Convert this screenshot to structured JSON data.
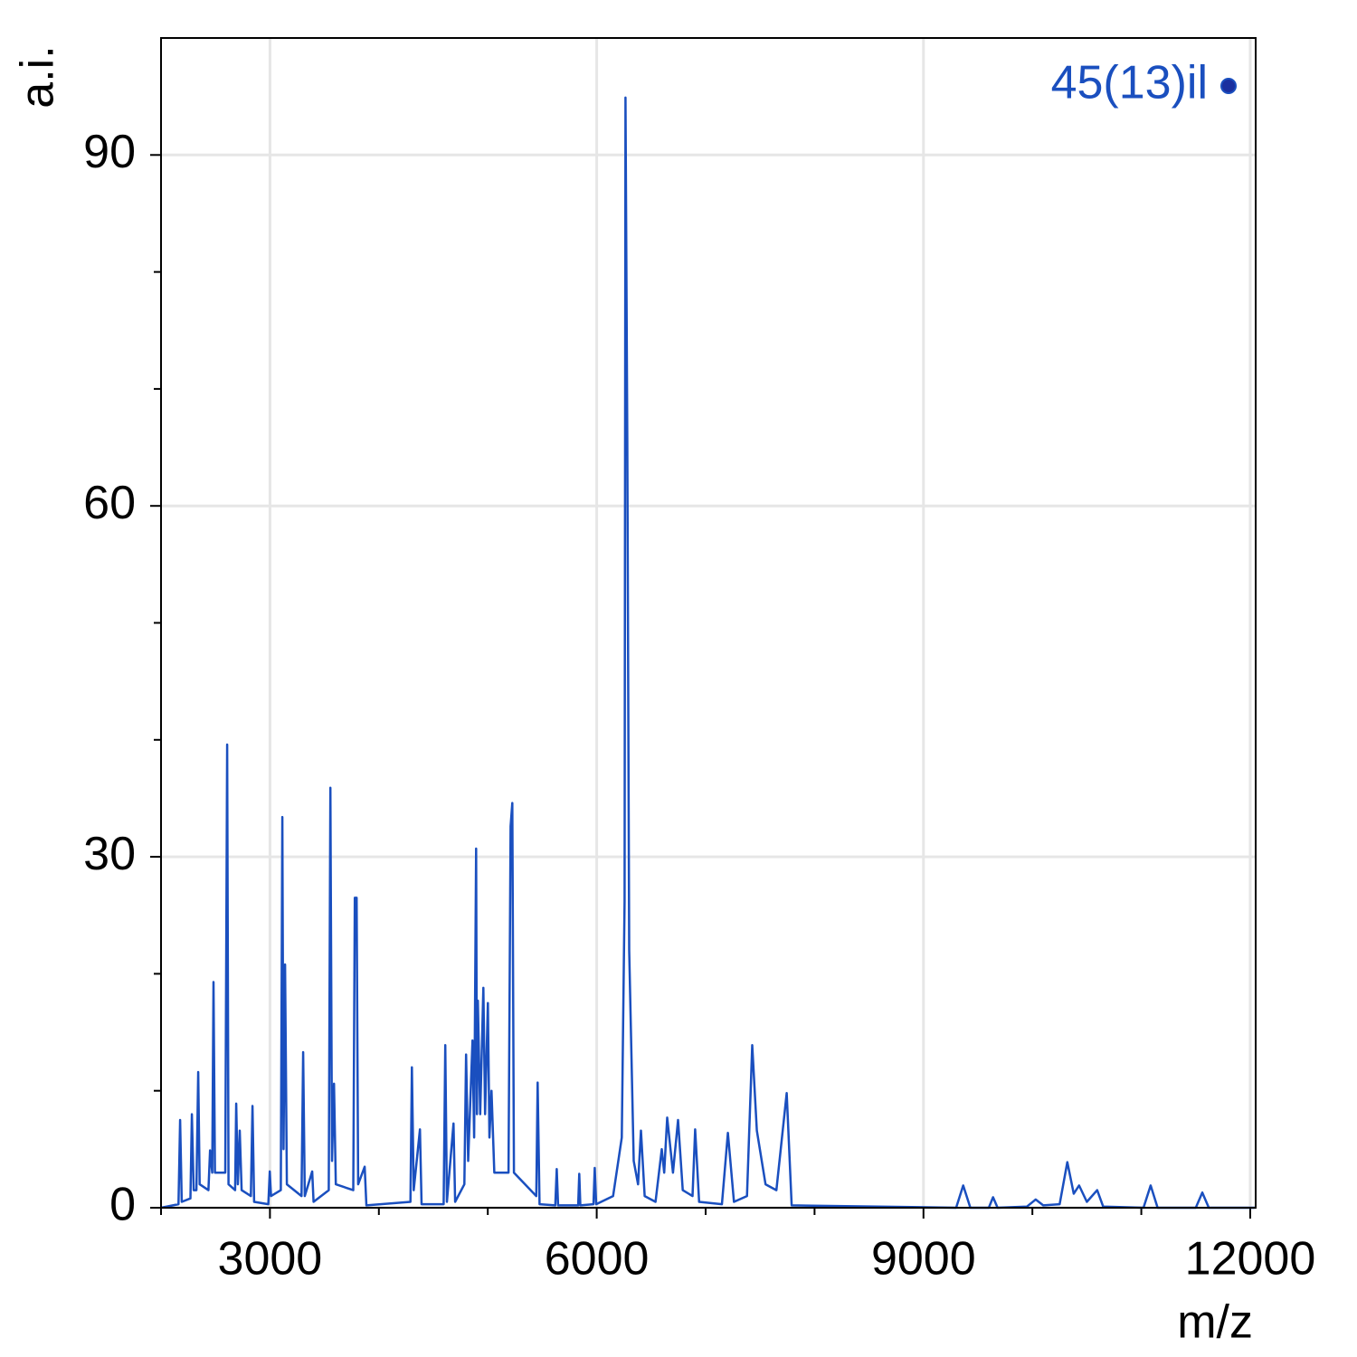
{
  "chart_data": {
    "type": "line",
    "xlabel": "m/z",
    "ylabel": "a.i.",
    "xlim": [
      2000,
      12050
    ],
    "ylim": [
      0,
      100
    ],
    "xticks": [
      3000,
      6000,
      9000,
      12000
    ],
    "xminorticks": [
      2000,
      4000,
      5000,
      7000,
      8000,
      10000,
      11000
    ],
    "yticks": [
      0,
      30,
      60,
      90
    ],
    "yminorticks": [
      10,
      20,
      40,
      50,
      70,
      80
    ],
    "grid": true,
    "legend": "upper right",
    "x": [
      2000,
      2160,
      2175,
      2190,
      2270,
      2283,
      2300,
      2325,
      2341,
      2355,
      2435,
      2450,
      2470,
      2482,
      2495,
      2590,
      2607,
      2620,
      2680,
      2690,
      2705,
      2723,
      2740,
      2825,
      2840,
      2855,
      2985,
      2998,
      3010,
      3100,
      3114,
      3125,
      3139,
      3155,
      3290,
      3305,
      3320,
      3388,
      3400,
      3540,
      3555,
      3570,
      3588,
      3605,
      3765,
      3779,
      3796,
      3810,
      3870,
      3885,
      4290,
      4303,
      4320,
      4377,
      4392,
      4595,
      4610,
      4625,
      4685,
      4700,
      4785,
      4801,
      4820,
      4860,
      4875,
      4893,
      4900,
      4909,
      4930,
      4959,
      4975,
      5001,
      5015,
      5034,
      5060,
      5190,
      5209,
      5225,
      5240,
      5445,
      5458,
      5475,
      5620,
      5633,
      5645,
      5830,
      5840,
      5850,
      5970,
      5982,
      5995,
      6150,
      6230,
      6256,
      6264,
      6281,
      6298,
      6340,
      6380,
      6406,
      6440,
      6540,
      6597,
      6620,
      6647,
      6700,
      6747,
      6790,
      6880,
      6904,
      6940,
      7150,
      7204,
      7260,
      7380,
      7428,
      7470,
      7550,
      7650,
      7744,
      7790,
      9300,
      9365,
      9430,
      9600,
      9639,
      9680,
      9950,
      10030,
      10100,
      10250,
      10321,
      10380,
      10429,
      10500,
      10595,
      10650,
      11020,
      11086,
      11150,
      11500,
      11560,
      11620,
      12040
    ],
    "series": [
      {
        "name": "45(13)il",
        "color": "#1a4fbf",
        "marker_color": "#1a2f9f",
        "values": [
          0,
          0.3,
          7.5,
          0.5,
          0.8,
          8,
          1.5,
          1.5,
          11.6,
          2,
          1.5,
          4.9,
          3,
          19.3,
          3,
          3,
          39.6,
          2,
          1.5,
          8.9,
          2,
          6.6,
          1.5,
          1,
          8.7,
          0.5,
          0.3,
          3.1,
          1,
          1.5,
          33.4,
          5,
          20.8,
          2,
          1,
          13.3,
          1,
          3.1,
          0.5,
          1.5,
          35.9,
          4,
          10.6,
          2,
          1.5,
          26.5,
          26.5,
          2,
          3.5,
          0.2,
          0.5,
          12,
          1.5,
          6.7,
          0.3,
          0.3,
          13.9,
          0.5,
          7.2,
          0.5,
          2,
          13.1,
          4,
          14.3,
          6,
          30.7,
          8,
          17.7,
          8,
          18.8,
          8,
          17.5,
          6,
          10,
          3,
          3,
          32.6,
          34.6,
          3,
          1,
          10.7,
          0.3,
          0.2,
          3.3,
          0.2,
          0.2,
          2.9,
          0.2,
          0.3,
          3.4,
          0.3,
          1,
          6,
          26.2,
          94.9,
          65.6,
          22,
          4,
          2,
          6.6,
          1,
          0.5,
          5,
          3,
          7.7,
          3,
          7.5,
          1.5,
          1,
          6.7,
          0.5,
          0.3,
          6.4,
          0.5,
          1,
          13.9,
          6.6,
          2,
          1.5,
          9.8,
          0.2,
          0,
          1.9,
          0,
          0,
          0.9,
          0,
          0.1,
          0.7,
          0.2,
          0.3,
          3.9,
          1.2,
          1.9,
          0.5,
          1.5,
          0.1,
          0,
          1.9,
          0,
          0,
          1.3,
          0,
          0
        ]
      }
    ]
  }
}
